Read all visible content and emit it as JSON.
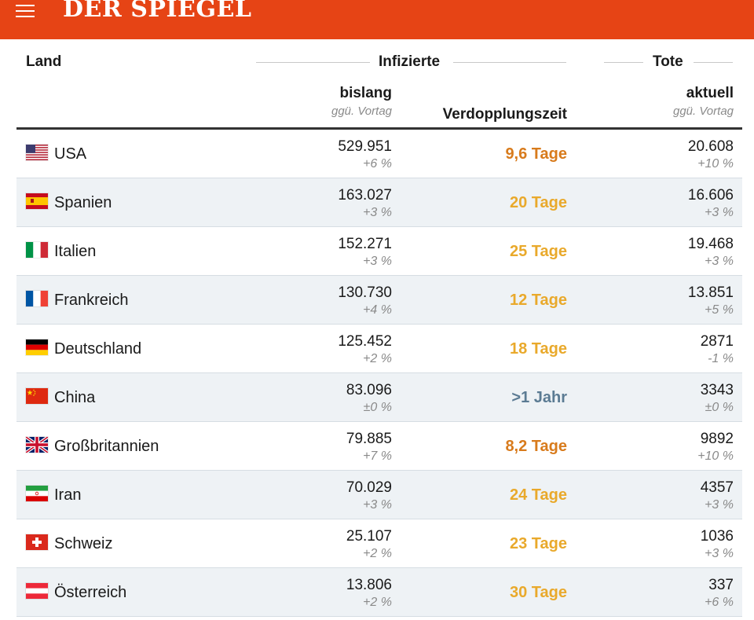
{
  "header": {
    "logo": "DER SPIEGEL",
    "menu_icon": "hamburger-menu-icon",
    "color": "#e64415"
  },
  "table": {
    "columns": {
      "land": "Land",
      "infizierte": "Infizierte",
      "tote": "Tote",
      "bislang": "bislang",
      "bislang_sub": "ggü. Vortag",
      "verdopplung": "Verdopplungszeit",
      "aktuell": "aktuell",
      "aktuell_sub": "ggü. Vortag"
    },
    "rows": [
      {
        "country": "USA",
        "flag": "us-flag-icon",
        "infected": "529.951",
        "infected_change": "+6 %",
        "doubling": "9,6 Tage",
        "doubling_color": "#d87b1c",
        "deaths": "20.608",
        "deaths_change": "+10 %"
      },
      {
        "country": "Spanien",
        "flag": "spain-flag-icon",
        "infected": "163.027",
        "infected_change": "+3 %",
        "doubling": "20 Tage",
        "doubling_color": "#e9a92b",
        "deaths": "16.606",
        "deaths_change": "+3 %"
      },
      {
        "country": "Italien",
        "flag": "italy-flag-icon",
        "infected": "152.271",
        "infected_change": "+3 %",
        "doubling": "25 Tage",
        "doubling_color": "#e9a92b",
        "deaths": "19.468",
        "deaths_change": "+3 %"
      },
      {
        "country": "Frankreich",
        "flag": "france-flag-icon",
        "infected": "130.730",
        "infected_change": "+4 %",
        "doubling": "12 Tage",
        "doubling_color": "#e9a92b",
        "deaths": "13.851",
        "deaths_change": "+5 %"
      },
      {
        "country": "Deutschland",
        "flag": "germany-flag-icon",
        "infected": "125.452",
        "infected_change": "+2 %",
        "doubling": "18 Tage",
        "doubling_color": "#e9a92b",
        "deaths": "2871",
        "deaths_change": "-1 %"
      },
      {
        "country": "China",
        "flag": "china-flag-icon",
        "infected": "83.096",
        "infected_change": "±0 %",
        "doubling": ">1 Jahr",
        "doubling_color": "#5b7b93",
        "deaths": "3343",
        "deaths_change": "±0 %"
      },
      {
        "country": "Großbritannien",
        "flag": "uk-flag-icon",
        "infected": "79.885",
        "infected_change": "+7 %",
        "doubling": "8,2 Tage",
        "doubling_color": "#d87b1c",
        "deaths": "9892",
        "deaths_change": "+10 %"
      },
      {
        "country": "Iran",
        "flag": "iran-flag-icon",
        "infected": "70.029",
        "infected_change": "+3 %",
        "doubling": "24 Tage",
        "doubling_color": "#e9a92b",
        "deaths": "4357",
        "deaths_change": "+3 %"
      },
      {
        "country": "Schweiz",
        "flag": "switzerland-flag-icon",
        "infected": "25.107",
        "infected_change": "+2 %",
        "doubling": "23 Tage",
        "doubling_color": "#e9a92b",
        "deaths": "1036",
        "deaths_change": "+3 %"
      },
      {
        "country": "Österreich",
        "flag": "austria-flag-icon",
        "infected": "13.806",
        "infected_change": "+2 %",
        "doubling": "30 Tage",
        "doubling_color": "#e9a92b",
        "deaths": "337",
        "deaths_change": "+6 %"
      }
    ]
  }
}
